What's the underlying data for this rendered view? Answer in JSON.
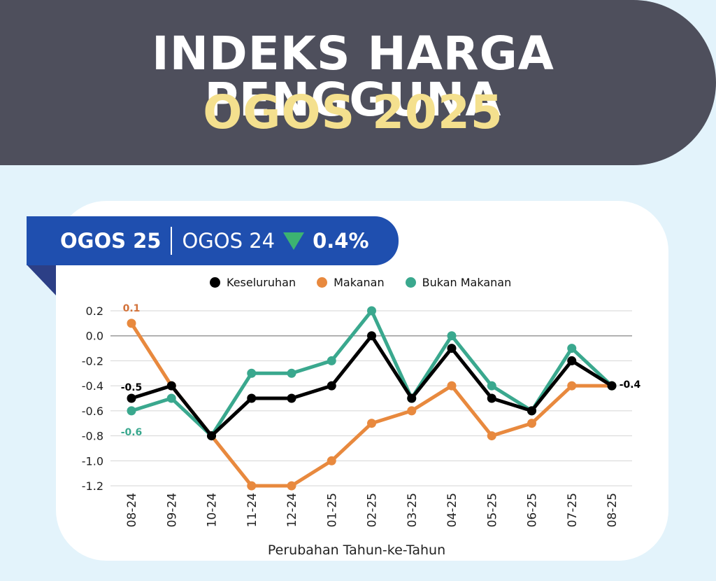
{
  "header": {
    "title_line1": "INDEKS HARGA PENGGUNA",
    "title_line2": "OGOS 2025"
  },
  "ribbon": {
    "current": "OGOS 25",
    "previous": "OGOS 24",
    "change": "0.4%",
    "direction_icon": "down-triangle-icon",
    "direction_color": "#3cb371"
  },
  "chart_data": {
    "type": "line",
    "title": "",
    "xlabel": "Perubahan Tahun-ke-Tahun",
    "ylabel": "",
    "categories": [
      "08-24",
      "09-24",
      "10-24",
      "11-24",
      "12-24",
      "01-25",
      "02-25",
      "03-25",
      "04-25",
      "05-25",
      "06-25",
      "07-25",
      "08-25"
    ],
    "ylim": [
      -1.2,
      0.2
    ],
    "yticks": [
      "0.2",
      "0.0",
      "-0.2",
      "-0.4",
      "-0.6",
      "-0.8",
      "-1.0",
      "-1.2"
    ],
    "grid": true,
    "legend_position": "top",
    "series": [
      {
        "name": "Keseluruhan",
        "color": "#000000",
        "values": [
          -0.5,
          -0.4,
          -0.8,
          -0.5,
          -0.5,
          -0.4,
          0.0,
          -0.5,
          -0.1,
          -0.5,
          -0.6,
          -0.2,
          -0.4
        ]
      },
      {
        "name": "Makanan",
        "color": "#e8893e",
        "values": [
          0.1,
          -0.4,
          -0.8,
          -1.2,
          -1.2,
          -1.0,
          -0.7,
          -0.6,
          -0.4,
          -0.8,
          -0.7,
          -0.4,
          -0.4
        ]
      },
      {
        "name": "Bukan Makanan",
        "color": "#3aa88e",
        "values": [
          -0.6,
          -0.5,
          -0.8,
          -0.3,
          -0.3,
          -0.2,
          0.2,
          -0.5,
          0.0,
          -0.4,
          -0.6,
          -0.1,
          -0.4
        ]
      }
    ],
    "annotations": [
      {
        "text": "0.1",
        "series": "Makanan",
        "index": 0,
        "color": "#d2723a"
      },
      {
        "text": "-0.5",
        "series": "Keseluruhan",
        "index": 0,
        "color": "#000000"
      },
      {
        "text": "-0.6",
        "series": "Bukan Makanan",
        "index": 0,
        "color": "#3aa88e"
      },
      {
        "text": "-0.4",
        "series": "Keseluruhan",
        "index": 12,
        "color": "#000000"
      }
    ]
  }
}
